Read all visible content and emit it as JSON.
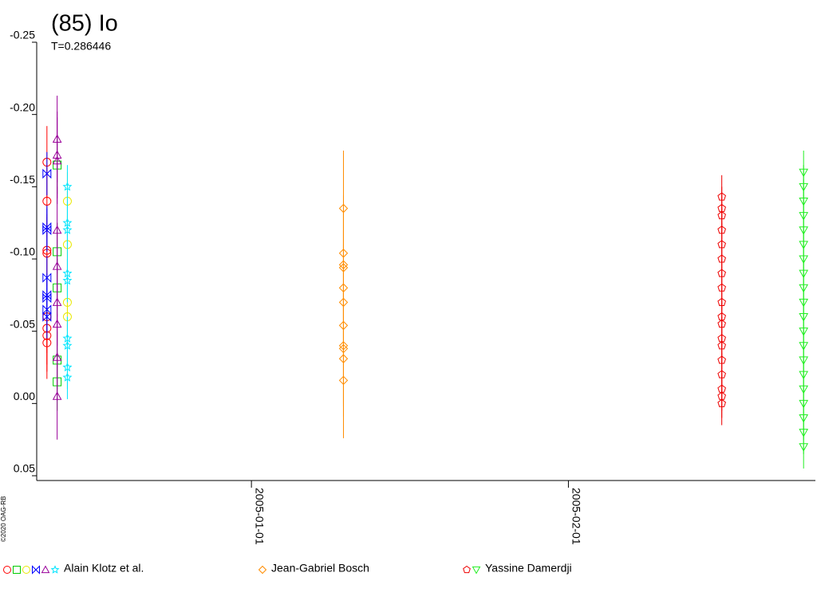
{
  "chart_data": {
    "type": "scatter",
    "title": "(85) Io",
    "subtitle": "T=0.286446",
    "copyright": "©2020 OAG-RB",
    "xlim": [
      "2004-12-11",
      "2005-02-25"
    ],
    "xticks": [
      "2005-01-01",
      "2005-02-01"
    ],
    "ylim": [
      -0.25,
      0.05
    ],
    "y_inverted": true,
    "yticks": [
      -0.25,
      {
        "value": -0.2,
        "label": "-0.20"
      },
      -0.15,
      {
        "value": -0.1,
        "label": "-0.10"
      },
      -0.05,
      {
        "value": 0,
        "label": "0.00"
      },
      0.05
    ],
    "series": [
      {
        "name": "Alain Klotz et al.",
        "sessions": [
          {
            "color": "#ff0000",
            "marker": "circle",
            "x": "2004-12-12",
            "error": 0.025,
            "values": [
              -0.167,
              -0.14,
              -0.106,
              -0.104,
              -0.06,
              -0.052,
              -0.047,
              -0.042
            ]
          },
          {
            "color": "#00cc00",
            "marker": "square",
            "x": "2004-12-13",
            "error": 0.02,
            "values": [
              -0.165,
              -0.105,
              -0.08,
              -0.03,
              -0.015
            ]
          },
          {
            "color": "#e8e800",
            "marker": "circle",
            "x": "2004-12-14",
            "error": 0.02,
            "values": [
              -0.14,
              -0.11,
              -0.07,
              -0.06
            ]
          },
          {
            "color": "#0000ff",
            "marker": "bowtie",
            "x": "2004-12-12",
            "error": 0.015,
            "values": [
              -0.159,
              -0.122,
              -0.12,
              -0.087,
              -0.075,
              -0.073,
              -0.065,
              -0.06
            ]
          },
          {
            "color": "#990099",
            "marker": "triangle",
            "x": "2004-12-13",
            "error": 0.03,
            "values": [
              -0.183,
              -0.172,
              -0.168,
              -0.12,
              -0.095,
              -0.07,
              -0.055,
              -0.032,
              -0.005
            ]
          },
          {
            "color": "#00e5ff",
            "marker": "star",
            "x": "2004-12-14",
            "error": 0.015,
            "values": [
              -0.15,
              -0.125,
              -0.12,
              -0.09,
              -0.085,
              -0.045,
              -0.04,
              -0.025,
              -0.018
            ]
          }
        ]
      },
      {
        "name": "Jean-Gabriel Bosch",
        "sessions": [
          {
            "color": "#ff8c00",
            "marker": "diamond",
            "x": "2005-01-10",
            "error": 0.04,
            "values": [
              -0.135,
              -0.104,
              -0.096,
              -0.094,
              -0.08,
              -0.07,
              -0.054,
              -0.04,
              -0.038,
              -0.031,
              -0.016
            ]
          }
        ]
      },
      {
        "name": "Yassine Damerdji",
        "sessions": [
          {
            "color": "#ee0000",
            "marker": "pentagon",
            "x": "2005-02-16",
            "error": 0.015,
            "values": [
              -0.143,
              -0.135,
              -0.13,
              -0.12,
              -0.11,
              -0.1,
              -0.09,
              -0.08,
              -0.07,
              -0.06,
              -0.055,
              -0.045,
              -0.04,
              -0.03,
              -0.02,
              -0.01,
              0,
              -0.005
            ]
          },
          {
            "color": "#22ee22",
            "marker": "downtriangle",
            "x": "2005-02-24",
            "error": 0.015,
            "values": [
              -0.16,
              -0.15,
              -0.14,
              -0.13,
              -0.12,
              -0.11,
              -0.1,
              -0.09,
              -0.08,
              -0.07,
              -0.06,
              -0.05,
              -0.04,
              -0.03,
              -0.02,
              -0.01,
              0,
              0.01,
              0.02,
              0.03
            ]
          }
        ]
      }
    ]
  }
}
